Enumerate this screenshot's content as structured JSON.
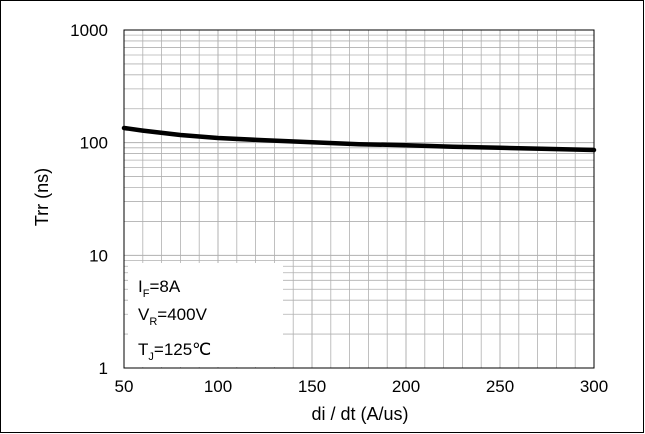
{
  "chart_data": {
    "type": "line",
    "xlabel": "di / dt (A/us)",
    "ylabel": "Trr (ns)",
    "xlim": [
      50,
      300
    ],
    "ylim": [
      1,
      1000
    ],
    "yscale": "log",
    "grid": true,
    "x_ticks": [
      "50",
      "100",
      "150",
      "200",
      "250",
      "300"
    ],
    "y_ticks": [
      "1",
      "10",
      "100",
      "1000"
    ],
    "series": [
      {
        "x": [
          50,
          60,
          80,
          100,
          125,
          150,
          175,
          200,
          225,
          250,
          275,
          300
        ],
        "values": [
          135,
          128,
          117,
          110,
          105,
          101,
          97,
          95,
          92,
          90,
          88,
          86
        ]
      }
    ],
    "annotation": {
      "line1_main": "I",
      "line1_sub": "F",
      "line1_rest": "=8A",
      "line2_main": "V",
      "line2_sub": "R",
      "line2_rest": "=400V",
      "line3_main": "T",
      "line3_sub": "J",
      "line3_rest": "=125℃"
    },
    "colors": {
      "line": "#000000",
      "grid": "#b0b0b0",
      "frame": "#000000"
    }
  }
}
